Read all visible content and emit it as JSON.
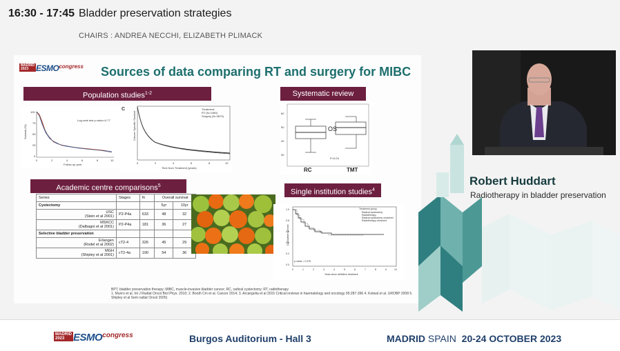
{
  "session": {
    "time": "16:30 - 17:45",
    "title": "Bladder preservation strategies",
    "chairs": "CHAIRS : ANDREA NECCHI, ELIZABETH PLIMACK"
  },
  "logo": {
    "box_line1": "MADRID",
    "box_line2": "2023",
    "text": "ESMO",
    "suffix": "congress"
  },
  "slide": {
    "title": "Sources of data comparing RT and surgery for MIBC",
    "labels": {
      "population": "Population studies",
      "population_sup": "1-2",
      "systematic": "Systematic  review",
      "academic": "Academic centre comparisons",
      "academic_sup": "5",
      "single": "Single institution studies",
      "single_sup": "4"
    },
    "km1": {
      "ylabel": "Survival (%)",
      "xlabel": "Follow-up year",
      "annotation": "Log-rank test p-value=0.77",
      "yticks": [
        "100",
        "75",
        "50",
        "25",
        "0"
      ],
      "xticks": [
        "0",
        "2",
        "4",
        "6",
        "8",
        "10"
      ]
    },
    "km2": {
      "panel_letter": "C",
      "ylabel": "Cancer Specific Survival",
      "xlabel": "Time from Treatment (years)",
      "legend_title": "Treatment:",
      "legend_1": "RT (N=1380)",
      "legend_2": "Surgery (N=3879)",
      "xticks": [
        "0",
        "2",
        "4",
        "6",
        "8",
        "10"
      ]
    },
    "boxplot": {
      "label": "OS",
      "pvalue": "P=0.04",
      "cat1": "RC",
      "cat2": "TMT",
      "yticks": [
        "60",
        "50",
        "40",
        "30"
      ]
    },
    "single_chart": {
      "legend_title": "Treatment group",
      "legend": [
        "Radical cystectomy",
        "Radiotherapy",
        "Radical cystectomy censored",
        "Radiotherapy censored"
      ],
      "ylabel": "Cumulative survival",
      "xlabel": "Years since definitive treatment",
      "pvalue": "p-value = 0.375",
      "xticks": [
        "0",
        "1",
        "2",
        "3",
        "4",
        "5",
        "6",
        "7",
        "8",
        "9",
        "10"
      ],
      "yticks": [
        "1.0",
        "0.8",
        "0.6",
        "0.4",
        "0.2",
        "0.0"
      ]
    },
    "table": {
      "headers": [
        "Series",
        "Stages",
        "N",
        "Overall survival"
      ],
      "subheaders": [
        "5yr",
        "10yr"
      ],
      "section_cystectomy": "Cystectomy",
      "section_selective": "Selective bladder preservation",
      "rows": [
        {
          "name": "USC",
          "ref": "(Stein et al 2001)",
          "stage": "P2-P4a",
          "n": "633",
          "y5": "48",
          "y10": "32"
        },
        {
          "name": "MSKCC",
          "ref": "(Dalbagni et al 2001)",
          "stage": "P2-P4a",
          "n": "181",
          "y5": "36",
          "y10": "27"
        },
        {
          "name": "Erlangen",
          "ref": "(Rodel et al 2002)",
          "stage": "cT2-4",
          "n": "326",
          "y5": "45",
          "y10": "29"
        },
        {
          "name": "MGH",
          "ref": "(Shipley et al 2001)",
          "stage": "cT2-4a",
          "n": "190",
          "y5": "54",
          "y10": "36"
        }
      ]
    },
    "footnote": "BPT, bladder preservation therapy; MIBC, muscle-invasive bladder cancer; RC, radical cystectomy; RT, radiotherapy\n1. Munro et al. Int J Radiat Oncol Biol Phys. 2010; 2. Booth Cm et al. Cancer 2014; 3. Arcangelia et al 2015 Critical reviews in haematology and oncology 95:287-396 4. Kotwal et al. UROBP 2008 5. Shipley et al Sem radiat Oncol 2005)"
  },
  "speaker": {
    "name": "Robert Huddart",
    "role": "Radiotherapy in bladder preservation"
  },
  "footer": {
    "venue": "Burgos Auditorium - Hall 3",
    "city_bold": "MADRID",
    "city_rest": " SPAIN",
    "dates": "20-24 OCTOBER 2023"
  },
  "colors": {
    "accent_teal": "#1d6f6e",
    "label_maroon": "#6d1f40",
    "esmo_red": "#a3282a",
    "esmo_blue": "#1e4f8a",
    "navy": "#1f3f6a"
  }
}
